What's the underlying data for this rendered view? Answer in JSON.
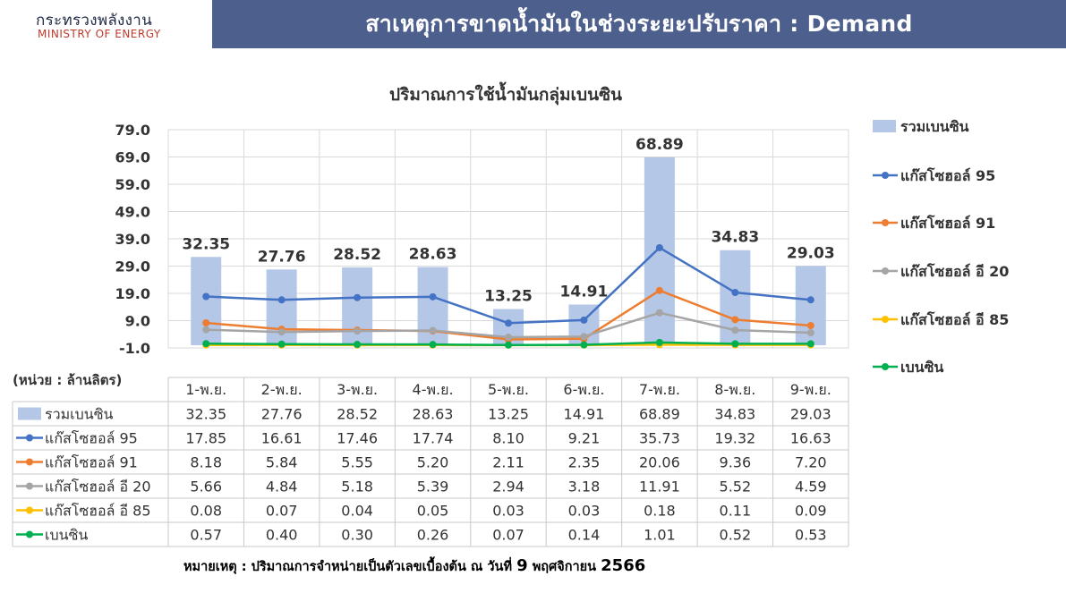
{
  "header": {
    "org_th": "กระทรวงพลังงาน",
    "org_en": "MINISTRY OF ENERGY",
    "title": "สาเหตุการขาดน้ำมันในช่วงระยะปรับราคา : Demand"
  },
  "note": {
    "label": "หมายเหตุ :",
    "text": "ปริมาณการจำหน่ายเป็นตัวเลขเบื้องต้น ณ วันที่",
    "day": "9",
    "month": "พฤศจิกายน",
    "year": "2566"
  },
  "chart_data": {
    "type": "bar",
    "title": "ปริมาณการใช้น้ำมันกลุ่มเบนซิน",
    "unit_label": "(หน่วย : ล้านลิตร)",
    "categories": [
      "1-พ.ย.",
      "2-พ.ย.",
      "3-พ.ย.",
      "4-พ.ย.",
      "5-พ.ย.",
      "6-พ.ย.",
      "7-พ.ย.",
      "8-พ.ย.",
      "9-พ.ย."
    ],
    "y_ticks": [
      "79.0",
      "69.0",
      "59.0",
      "49.0",
      "39.0",
      "29.0",
      "19.0",
      "9.0",
      "-1.0"
    ],
    "ylim": [
      -1,
      79
    ],
    "grid": true,
    "legend_position": "right",
    "bar_series": {
      "name": "รวมเบนซิน",
      "color": "#b4c7e7",
      "values": [
        32.35,
        27.76,
        28.52,
        28.63,
        13.25,
        14.91,
        68.89,
        34.83,
        29.03
      ],
      "labels": [
        "32.35",
        "27.76",
        "28.52",
        "28.63",
        "13.25",
        "14.91",
        "68.89",
        "34.83",
        "29.03"
      ],
      "table": [
        "32.35",
        "27.76",
        "28.52",
        "28.63",
        "13.25",
        "14.91",
        "68.89",
        "34.83",
        "29.03"
      ]
    },
    "line_series": [
      {
        "name": "แก๊สโซฮอล์ 95",
        "color": "#4472c4",
        "values": [
          17.85,
          16.61,
          17.46,
          17.74,
          8.1,
          9.21,
          35.73,
          19.32,
          16.63
        ],
        "table": [
          "17.85",
          "16.61",
          "17.46",
          "17.74",
          "8.10",
          "9.21",
          "35.73",
          "19.32",
          "16.63"
        ]
      },
      {
        "name": "แก๊สโซฮอล์ 91",
        "color": "#ed7d31",
        "values": [
          8.18,
          5.84,
          5.55,
          5.2,
          2.11,
          2.35,
          20.06,
          9.36,
          7.2
        ],
        "table": [
          "8.18",
          "5.84",
          "5.55",
          "5.20",
          "2.11",
          "2.35",
          "20.06",
          "9.36",
          "7.20"
        ]
      },
      {
        "name": "แก๊สโซฮอล์ อี 20",
        "color": "#a5a5a5",
        "values": [
          5.66,
          4.84,
          5.18,
          5.39,
          2.94,
          3.18,
          11.91,
          5.52,
          4.59
        ],
        "table": [
          "5.66",
          "4.84",
          "5.18",
          "5.39",
          "2.94",
          "3.18",
          "11.91",
          "5.52",
          "4.59"
        ]
      },
      {
        "name": "แก๊สโซฮอล์ อี 85",
        "color": "#ffc000",
        "values": [
          0.08,
          0.07,
          0.04,
          0.05,
          0.03,
          0.03,
          0.18,
          0.11,
          0.09
        ],
        "table": [
          "0.08",
          "0.07",
          "0.04",
          "0.05",
          "0.03",
          "0.03",
          "0.18",
          "0.11",
          "0.09"
        ]
      },
      {
        "name": "เบนซิน",
        "color": "#00b050",
        "values": [
          0.57,
          0.4,
          0.3,
          0.26,
          0.07,
          0.14,
          1.01,
          0.52,
          0.53
        ],
        "table": [
          "0.57",
          "0.40",
          "0.30",
          "0.26",
          "0.07",
          "0.14",
          "1.01",
          "0.52",
          "0.53"
        ]
      }
    ]
  }
}
